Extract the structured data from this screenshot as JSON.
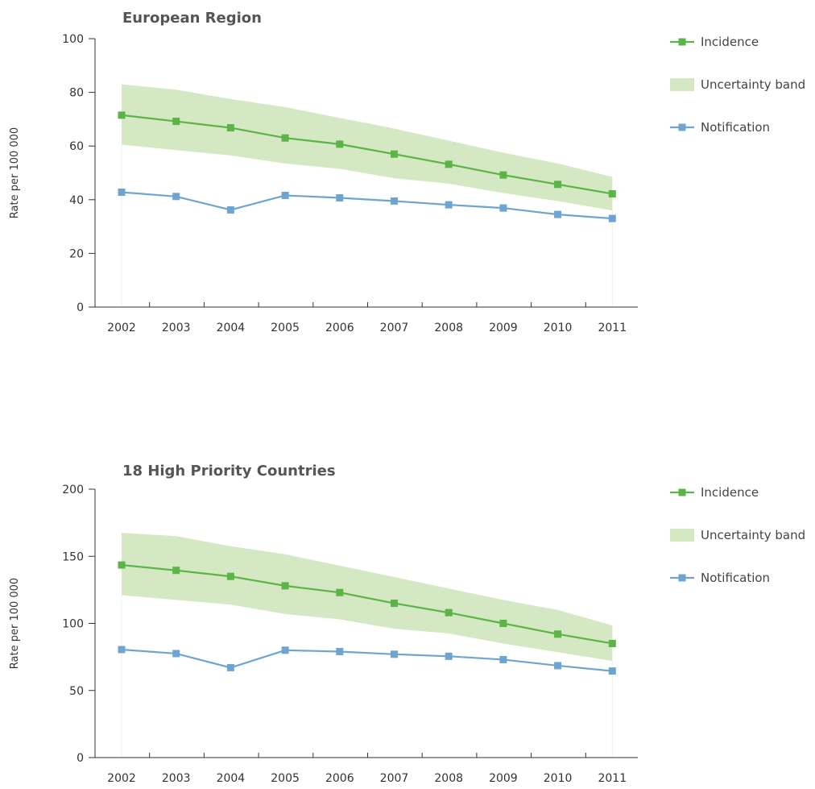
{
  "colors": {
    "incidence": "#5cb346",
    "band": "#d3e8c3",
    "notification": "#6ea5d0",
    "text": "#333333"
  },
  "legend": {
    "incidence": "Incidence",
    "band": "Uncertainty band",
    "notification": "Notification"
  },
  "chart_data": [
    {
      "type": "line",
      "title": "European Region",
      "ylabel": "Rate per 100 000",
      "xlabel": "",
      "ylim": [
        0,
        100
      ],
      "yticks": [
        0,
        20,
        40,
        60,
        80,
        100
      ],
      "categories": [
        "2002",
        "2003",
        "2004",
        "2005",
        "2006",
        "2007",
        "2008",
        "2009",
        "2010",
        "2011"
      ],
      "series": [
        {
          "name": "Incidence",
          "values": [
            71.5,
            69.2,
            66.8,
            63.0,
            60.7,
            57.0,
            53.2,
            49.2,
            45.7,
            42.2
          ]
        },
        {
          "name": "Notification",
          "values": [
            42.8,
            41.2,
            36.2,
            41.6,
            40.7,
            39.5,
            38.1,
            36.9,
            34.5,
            33.0
          ]
        }
      ],
      "band": {
        "name": "Uncertainty band",
        "lower": [
          60.5,
          58.5,
          56.5,
          53.5,
          51.5,
          48.0,
          46.0,
          42.5,
          39.5,
          36.0
        ],
        "upper": [
          83.0,
          81.0,
          77.5,
          74.5,
          70.5,
          66.5,
          62.0,
          57.5,
          53.5,
          48.5
        ]
      },
      "legend_position": "right"
    },
    {
      "type": "line",
      "title": "18 High Priority Countries",
      "ylabel": "Rate per 100 000",
      "xlabel": "",
      "ylim": [
        0,
        200
      ],
      "yticks": [
        0,
        50,
        100,
        150,
        200
      ],
      "categories": [
        "2002",
        "2003",
        "2004",
        "2005",
        "2006",
        "2007",
        "2008",
        "2009",
        "2010",
        "2011"
      ],
      "series": [
        {
          "name": "Incidence",
          "values": [
            143.5,
            139.5,
            135.0,
            128.0,
            123.0,
            115.0,
            108.0,
            100.0,
            92.0,
            85.0
          ]
        },
        {
          "name": "Notification",
          "values": [
            80.5,
            77.5,
            67.0,
            80.0,
            79.0,
            77.0,
            75.5,
            73.0,
            68.5,
            64.5
          ]
        }
      ],
      "band": {
        "name": "Uncertainty band",
        "lower": [
          121.0,
          117.5,
          114.0,
          107.0,
          103.0,
          96.0,
          92.5,
          85.0,
          78.5,
          72.0
        ],
        "upper": [
          167.5,
          165.0,
          157.5,
          151.5,
          143.0,
          134.5,
          126.0,
          117.5,
          110.0,
          98.5
        ]
      },
      "legend_position": "right"
    }
  ]
}
